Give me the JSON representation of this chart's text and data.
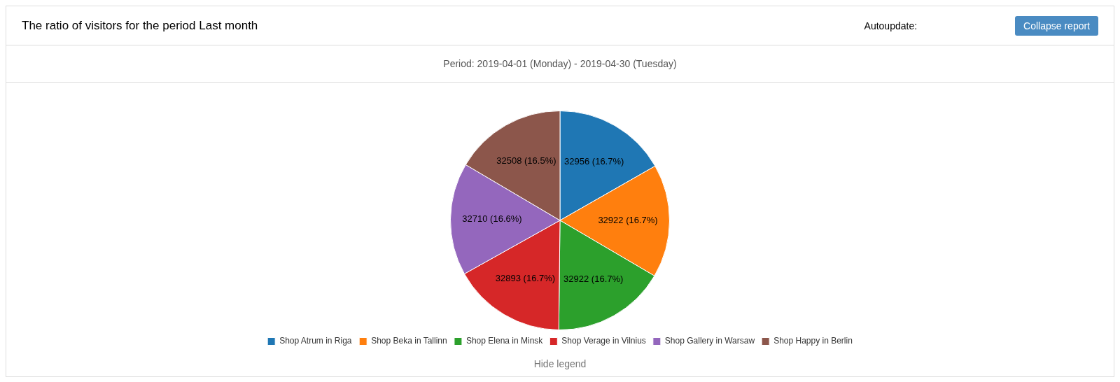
{
  "chart_data": {
    "type": "pie",
    "title": "The ratio of visitors for the period Last month",
    "subtitle": "Period: 2019-04-01 (Monday) - 2019-04-30 (Tuesday)",
    "categories": [
      "Shop Atrum in Riga",
      "Shop Beka in Tallinn",
      "Shop Elena in Minsk",
      "Shop Verage in Vilnius",
      "Shop Gallery in Warsaw",
      "Shop Happy in Berlin"
    ],
    "values": [
      32956,
      32922,
      32922,
      32893,
      32710,
      32508
    ],
    "colors": [
      "#1f77b4",
      "#ff7f0e",
      "#2ca02c",
      "#d62728",
      "#9467bd",
      "#8c564b"
    ],
    "value_labels": [
      "32956 (16.7%)",
      "32922 (16.7%)",
      "32922 (16.7%)",
      "32893 (16.7%)",
      "32710 (16.6%)",
      "32508 (16.5%)"
    ],
    "legend": "bottom",
    "annotations": [
      "Autoupdate:",
      "Collapse report",
      "Hide legend"
    ]
  }
}
